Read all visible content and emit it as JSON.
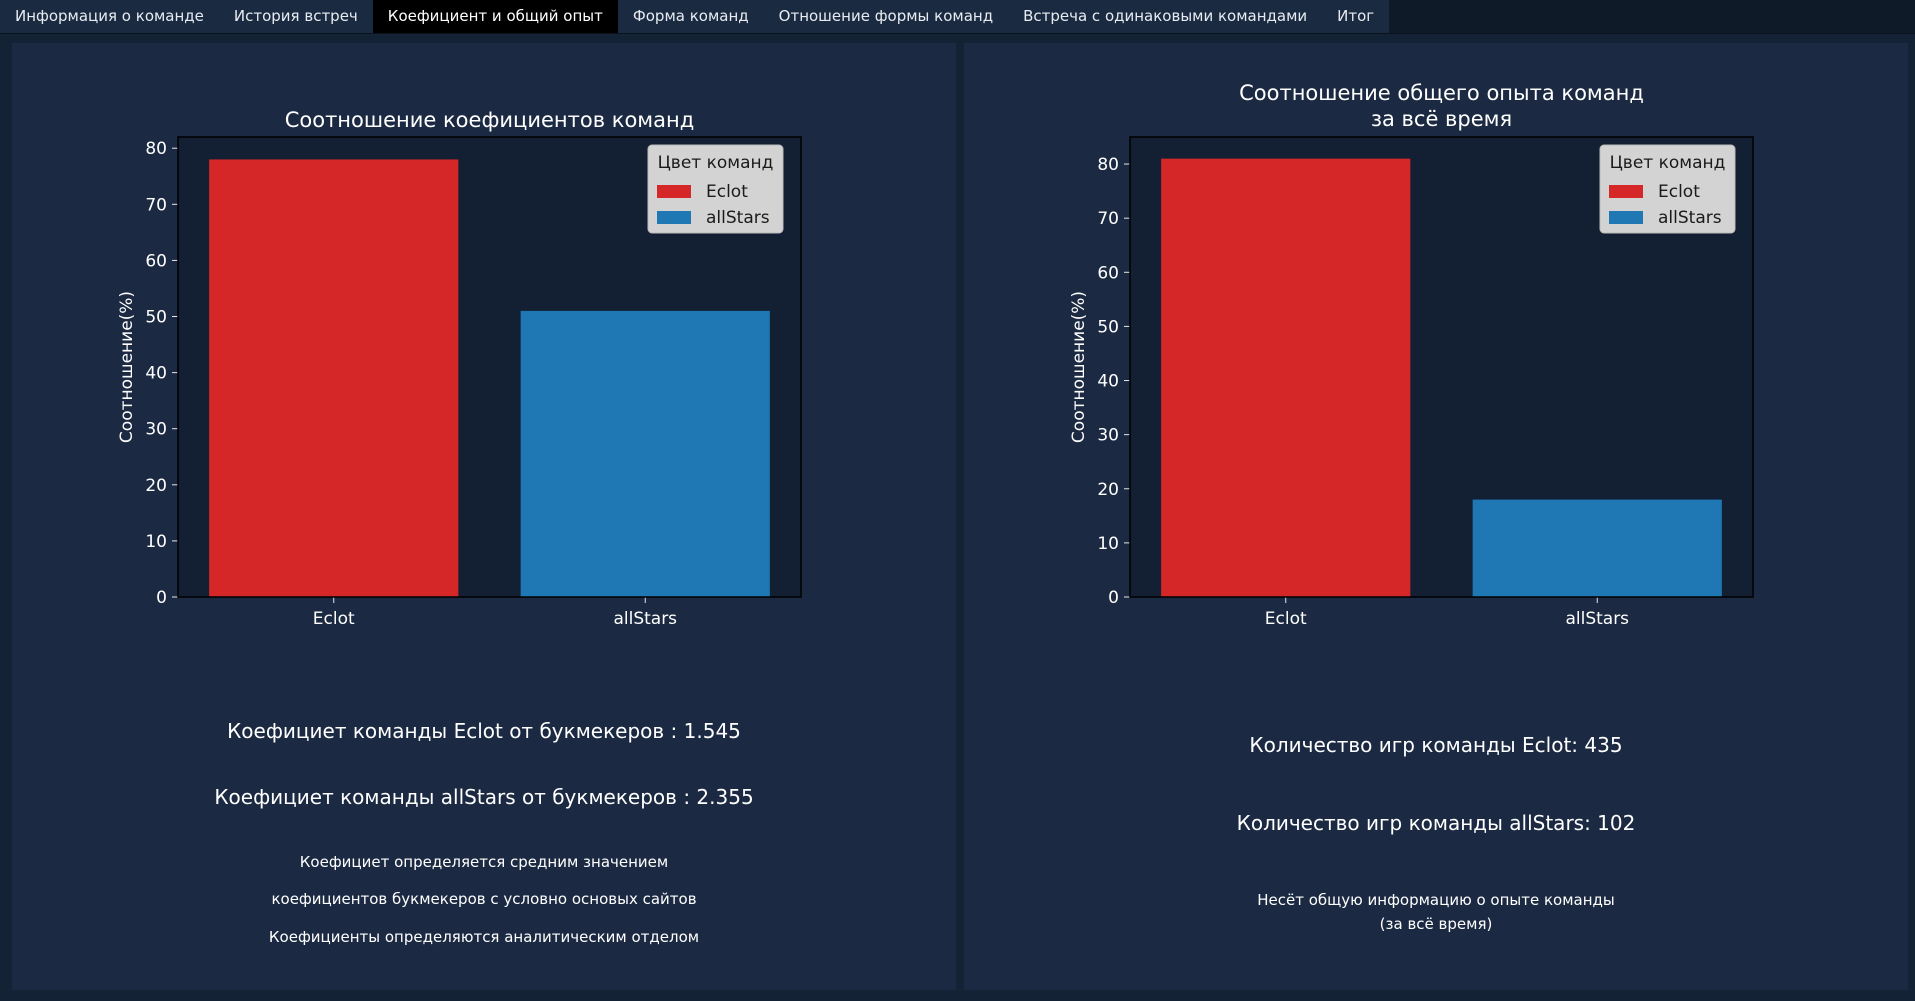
{
  "tabs": [
    {
      "label": "Информация о команде",
      "active": false
    },
    {
      "label": "История встреч",
      "active": false
    },
    {
      "label": "Коефициент и общий опыт",
      "active": true
    },
    {
      "label": "Форма команд",
      "active": false
    },
    {
      "label": "Отношение формы команд",
      "active": false
    },
    {
      "label": "Встреча с одинаковыми командами",
      "active": false
    },
    {
      "label": "Итог",
      "active": false
    }
  ],
  "left_panel": {
    "line1": "Коефициет команды Eclot от букмекеров : 1.545",
    "line2": "Коефициет команды allStars от букмекеров : 2.355",
    "note1": "Коефициет определяется средним значением",
    "note2": "коефициентов букмекеров с условно основых сайтов",
    "note3": "Коефициенты определяются аналитическим отделом"
  },
  "right_panel": {
    "line1": "Количество игр команды Eclot: 435",
    "line2": "Количество игр команды allStars: 102",
    "note1": "Несёт общую информацию о опыте команды",
    "note2": "(за всё время)"
  },
  "colors": {
    "eclot": "#d62728",
    "allstars": "#1f77b4",
    "plot_bg": "#131f33",
    "panel_bg": "#1b2a42"
  },
  "chart_data": [
    {
      "type": "bar",
      "title": "Соотношение коефициентов команд",
      "ylabel": "Соотношение(%)",
      "categories": [
        "Eclot",
        "allStars"
      ],
      "values": [
        78,
        51
      ],
      "colors": [
        "#d62728",
        "#1f77b4"
      ],
      "ylim": [
        0,
        82
      ],
      "yticks": [
        0,
        10,
        20,
        30,
        40,
        50,
        60,
        70,
        80
      ],
      "legend": {
        "title": "Цвет команд",
        "entries": [
          "Eclot",
          "allStars"
        ],
        "placement": "top-right"
      }
    },
    {
      "type": "bar",
      "title": "Соотношение общего опыта команд\nза всё время",
      "ylabel": "Соотношение(%)",
      "categories": [
        "Eclot",
        "allStars"
      ],
      "values": [
        81,
        18
      ],
      "colors": [
        "#d62728",
        "#1f77b4"
      ],
      "ylim": [
        0,
        85
      ],
      "yticks": [
        0,
        10,
        20,
        30,
        40,
        50,
        60,
        70,
        80
      ],
      "legend": {
        "title": "Цвет команд",
        "entries": [
          "Eclot",
          "allStars"
        ],
        "placement": "top-right"
      }
    }
  ]
}
